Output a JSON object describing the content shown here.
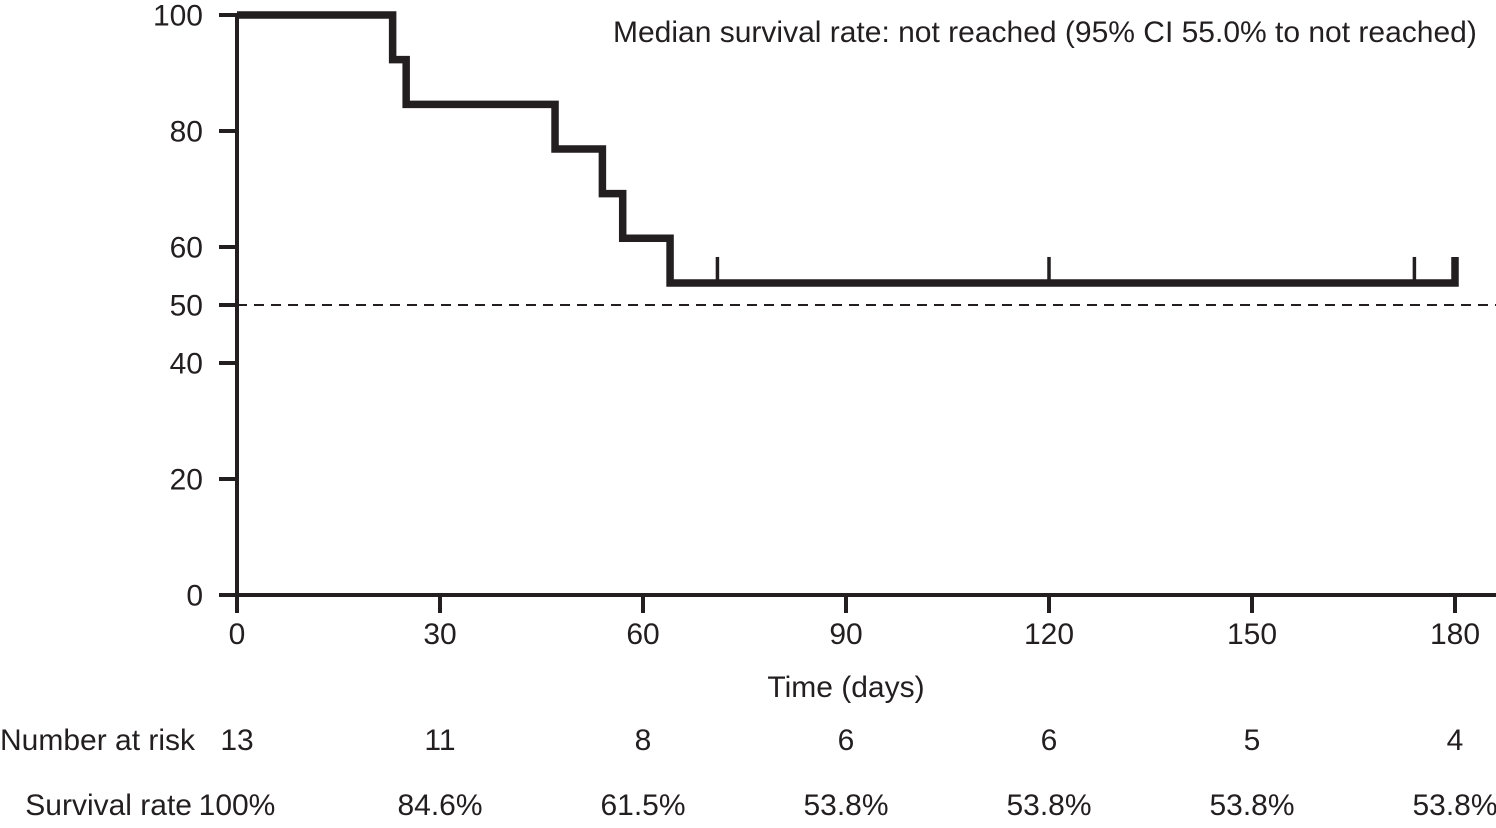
{
  "ink_color": "#231f20",
  "background_color": "#ffffff",
  "chart_data": {
    "type": "line",
    "subtype": "kaplan-meier-step-curve",
    "title": "",
    "annotation": "Median survival rate: not reached (95% CI 55.0% to not reached)",
    "xlabel": "Time (days)",
    "ylabel": "",
    "xlim": [
      0,
      186
    ],
    "ylim": [
      0,
      100
    ],
    "x_ticks": [
      0,
      30,
      60,
      90,
      120,
      150,
      180
    ],
    "y_ticks": [
      0,
      20,
      40,
      50,
      60,
      80,
      100
    ],
    "grid": false,
    "legend": null,
    "median_reference_line_y": 50,
    "survival_steps": [
      {
        "time": 0,
        "survival_pct": 100
      },
      {
        "time": 23,
        "survival_pct": 92.3
      },
      {
        "time": 25,
        "survival_pct": 84.6
      },
      {
        "time": 47,
        "survival_pct": 76.9
      },
      {
        "time": 54,
        "survival_pct": 69.2
      },
      {
        "time": 57,
        "survival_pct": 61.5
      },
      {
        "time": 64,
        "survival_pct": 53.8
      }
    ],
    "curve_end_time": 180,
    "censor_marks": [
      {
        "time": 71,
        "survival_pct": 53.8
      },
      {
        "time": 120,
        "survival_pct": 53.8
      },
      {
        "time": 174,
        "survival_pct": 53.8
      },
      {
        "time": 180,
        "survival_pct": 53.8
      }
    ],
    "risk_table": {
      "times": [
        0,
        30,
        60,
        90,
        120,
        150,
        180
      ],
      "rows": [
        {
          "label": "Number at risk",
          "values": [
            "13",
            "11",
            "8",
            "6",
            "6",
            "5",
            "4"
          ]
        },
        {
          "label": "Survival rate",
          "values": [
            "100%",
            "84.6%",
            "61.5%",
            "53.8%",
            "53.8%",
            "53.8%",
            "53.8%"
          ]
        }
      ]
    }
  }
}
